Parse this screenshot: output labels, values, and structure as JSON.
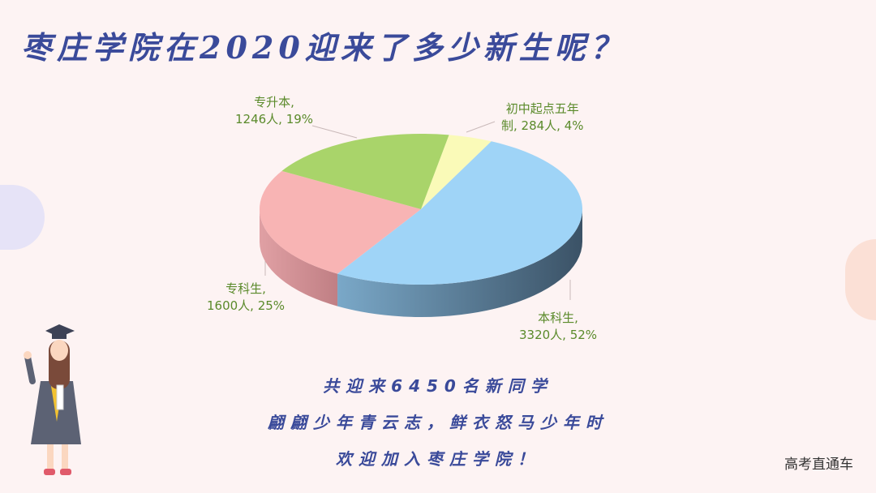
{
  "title": "枣庄学院在2020迎来了多少新生呢？",
  "chart_data": {
    "type": "pie",
    "style": "3d",
    "title": "",
    "slices": [
      {
        "name": "初中起点五年制",
        "value": 284,
        "percent": 4,
        "label_line1": "初中起点五年",
        "label_line2": "制, 284人, 4%",
        "color": "#fafab8"
      },
      {
        "name": "本科生",
        "value": 3320,
        "percent": 52,
        "label_line1": "本科生,",
        "label_line2": "3320人, 52%",
        "color": "#9fd4f7"
      },
      {
        "name": "专科生",
        "value": 1600,
        "percent": 25,
        "label_line1": "专科生,",
        "label_line2": "1600人, 25%",
        "color": "#f8b4b4"
      },
      {
        "name": "专升本",
        "value": 1246,
        "percent": 19,
        "label_line1": "专升本,",
        "label_line2": "1246人, 19%",
        "color": "#a9d46a"
      }
    ]
  },
  "messages": [
    "共迎来6450名新同学",
    "翩翩少年青云志，鲜衣怒马少年时",
    "欢迎加入枣庄学院！"
  ],
  "watermark": "高考直通车"
}
